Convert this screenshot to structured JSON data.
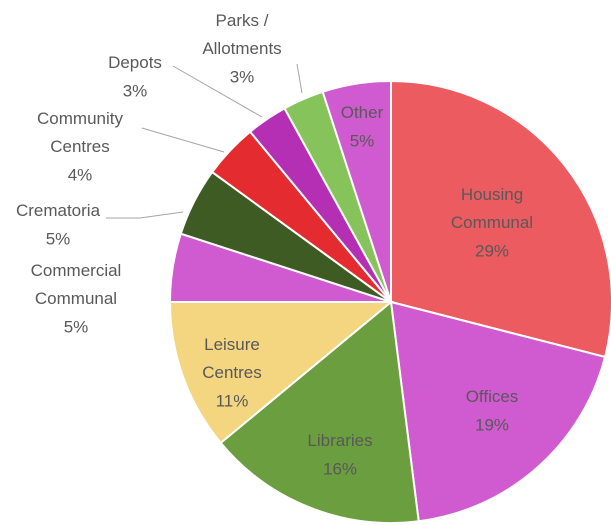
{
  "chart_data": {
    "type": "pie",
    "categories": [
      "Housing Communal",
      "Offices",
      "Libraries",
      "Leisure Centres",
      "Commercial Communal",
      "Crematoria",
      "Community Centres",
      "Depots",
      "Parks / Allotments",
      "Other"
    ],
    "values": [
      29,
      19,
      16,
      11,
      5,
      5,
      4,
      3,
      3,
      5
    ],
    "value_labels": [
      "29%",
      "19%",
      "16%",
      "11%",
      "5%",
      "5%",
      "4%",
      "3%",
      "3%",
      "5%"
    ],
    "colors": [
      "#eb5b5f",
      "#d05bd0",
      "#6a9e3f",
      "#f3d67f",
      "#d05bd0",
      "#3e5b23",
      "#e42b30",
      "#b52fb5",
      "#86c35a",
      "#d05bd0"
    ]
  }
}
